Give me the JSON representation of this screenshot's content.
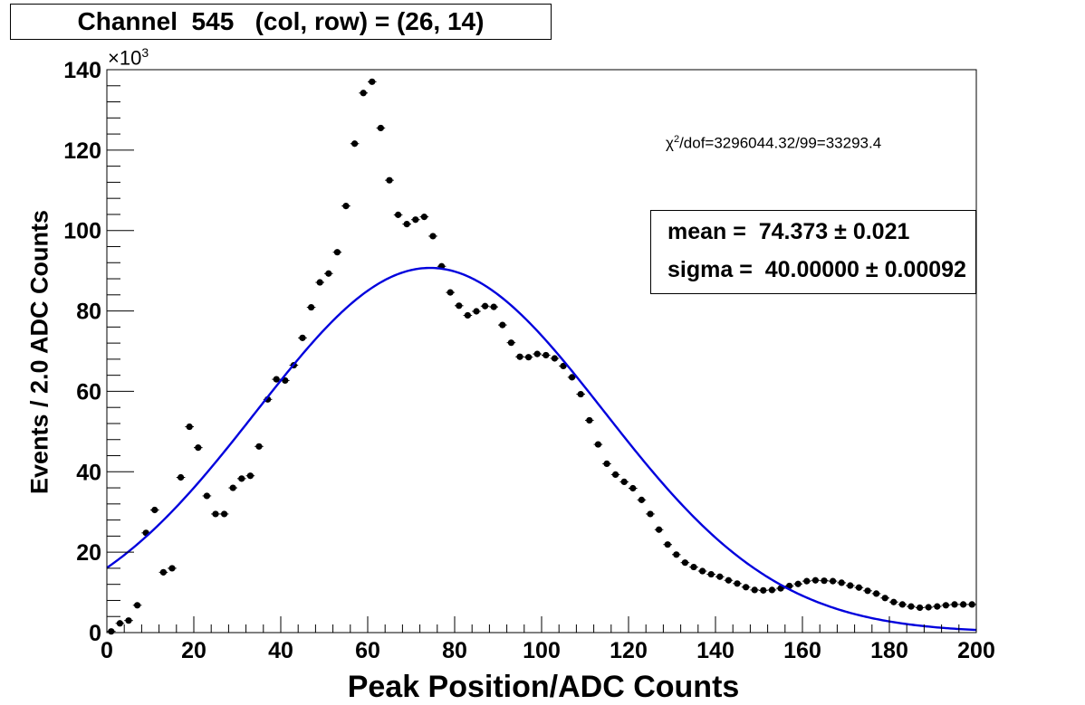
{
  "title": "Channel  545   (col, row) = (26, 14)",
  "fit_text": {
    "chi2_symbol": "χ",
    "chi2_sup": "2",
    "chi2_rest": "/dof=3296044.32/99=33293.4"
  },
  "stats": {
    "mean": "mean =  74.373 ± 0.021",
    "sigma": "sigma =  40.00000 ± 0.00092"
  },
  "y_multiplier": {
    "prefix": "×10",
    "exp": "3"
  },
  "colors": {
    "points": "#000000",
    "fit": "#0000dd",
    "frame": "#000000"
  },
  "chart_data": {
    "type": "scatter",
    "xlabel": "Peak Position/ADC Counts",
    "ylabel": "Events / 2.0 ADC Counts",
    "xlim": [
      0,
      200
    ],
    "ylim": [
      0,
      140
    ],
    "y_unit_scale": 1000,
    "x_ticks": [
      0,
      20,
      40,
      60,
      80,
      100,
      120,
      140,
      160,
      180,
      200
    ],
    "y_ticks": [
      0,
      20,
      40,
      60,
      80,
      100,
      120,
      140
    ],
    "grid": false,
    "series": [
      {
        "kind": "points",
        "x": [
          1,
          3,
          5,
          7,
          9,
          11,
          13,
          15,
          17,
          19,
          21,
          23,
          25,
          27,
          29,
          31,
          33,
          35,
          37,
          39,
          41,
          43,
          45,
          47,
          49,
          51,
          53,
          55,
          57,
          59,
          61,
          63,
          65,
          67,
          69,
          71,
          73,
          75,
          77,
          79,
          81,
          83,
          85,
          87,
          89,
          91,
          93,
          95,
          97,
          99,
          101,
          103,
          105,
          107,
          109,
          111,
          113,
          115,
          117,
          119,
          121,
          123,
          125,
          127,
          129,
          131,
          133,
          135,
          137,
          139,
          141,
          143,
          145,
          147,
          149,
          151,
          153,
          155,
          157,
          159,
          161,
          163,
          165,
          167,
          169,
          171,
          173,
          175,
          177,
          179,
          181,
          183,
          185,
          187,
          189,
          191,
          193,
          195,
          197,
          199
        ],
        "y": [
          0.3,
          2.3,
          3.0,
          6.8,
          24.8,
          30.5,
          15.0,
          16.0,
          38.6,
          51.2,
          46.0,
          34.0,
          29.5,
          29.5,
          36.0,
          38.3,
          39.0,
          46.3,
          58.0,
          63.0,
          62.7,
          66.5,
          73.3,
          80.9,
          87.1,
          89.3,
          94.6,
          106.1,
          121.6,
          134.2,
          137.0,
          125.5,
          112.5,
          103.9,
          101.6,
          102.7,
          103.4,
          98.6,
          91.1,
          84.6,
          81.3,
          78.9,
          79.9,
          81.2,
          81.0,
          76.5,
          72.1,
          68.6,
          68.5,
          69.3,
          69.0,
          68.2,
          66.3,
          63.5,
          59.3,
          52.8,
          46.8,
          42.0,
          39.3,
          37.5,
          35.9,
          33.0,
          29.5,
          25.6,
          21.9,
          19.4,
          17.4,
          16.3,
          15.3,
          14.5,
          13.9,
          13.0,
          12.2,
          11.3,
          10.6,
          10.5,
          10.6,
          11.0,
          11.6,
          12.1,
          12.8,
          13.0,
          12.9,
          12.8,
          12.4,
          11.7,
          11.2,
          10.4,
          9.7,
          8.6,
          7.6,
          7.0,
          6.5,
          6.2,
          6.3,
          6.5,
          6.8,
          7.0,
          7.0,
          7.0
        ]
      },
      {
        "kind": "gaussian_fit",
        "mean": 74.373,
        "sigma": 40.0,
        "amplitude": 90.7
      }
    ]
  }
}
